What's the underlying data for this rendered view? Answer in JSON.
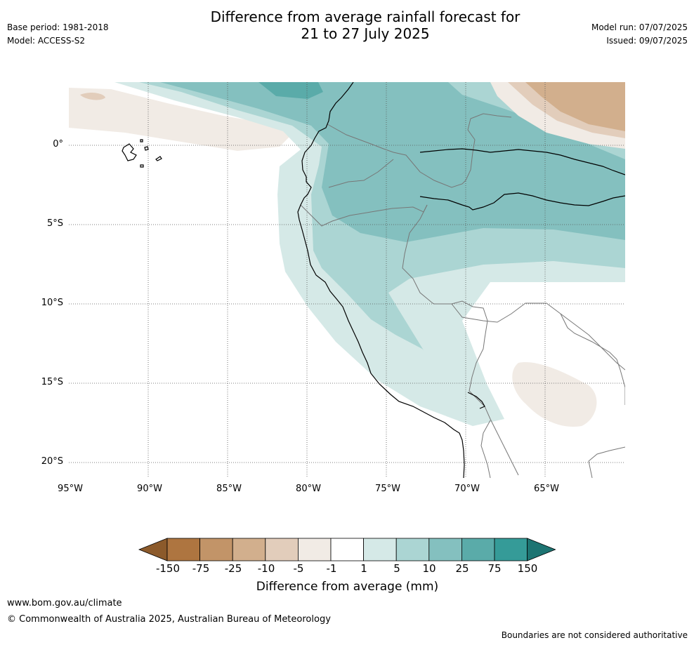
{
  "header": {
    "title_line1": "Difference from average rainfall forecast for",
    "title_line2": "21 to 27 July 2025",
    "base_period": "Base period: 1981-2018",
    "model": "Model: ACCESS-S2",
    "model_run": "Model run: 07/07/2025",
    "issued": "Issued: 09/07/2025"
  },
  "map": {
    "lat_labels": [
      "0°",
      "5°S",
      "10°S",
      "15°S",
      "20°S"
    ],
    "lon_labels": [
      "95°W",
      "90°W",
      "85°W",
      "80°W",
      "75°W",
      "70°W",
      "65°W"
    ]
  },
  "colorbar": {
    "title": "Difference from average (mm)",
    "ticks": [
      "-150",
      "-75",
      "-25",
      "-10",
      "-5",
      "-1",
      "1",
      "5",
      "10",
      "25",
      "75",
      "150"
    ],
    "colors": [
      "#8c5a2b",
      "#ae7540",
      "#c29468",
      "#d2af8d",
      "#e2cdbb",
      "#f1ebe5",
      "#ffffff",
      "#d5e9e7",
      "#abd5d3",
      "#84c0bf",
      "#5aaba9",
      "#359b98",
      "#1d7472"
    ]
  },
  "footer": {
    "website": "www.bom.gov.au/climate",
    "copyright": "© Commonwealth of Australia 2025, Australian Bureau of Meteorology",
    "disclaimer": "Boundaries are not considered authoritative"
  }
}
